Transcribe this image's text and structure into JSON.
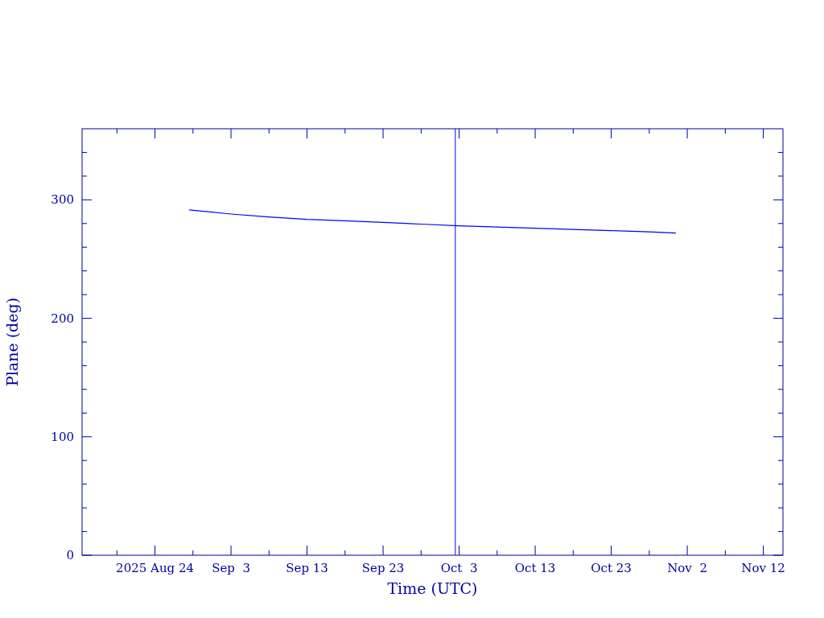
{
  "chart_data": {
    "type": "line",
    "xlabel": "Time (UTC)",
    "ylabel": "Plane (deg)",
    "xlim": [
      "2025-08-14T10:00",
      "2025-11-14T14:00"
    ],
    "xticks": [
      {
        "value": "2025-08-19",
        "label": null
      },
      {
        "value": "2025-08-24",
        "label": "2025 Aug 24"
      },
      {
        "value": "2025-08-29",
        "label": null
      },
      {
        "value": "2025-09-03",
        "label": "Sep  3"
      },
      {
        "value": "2025-09-08",
        "label": null
      },
      {
        "value": "2025-09-13",
        "label": "Sep 13"
      },
      {
        "value": "2025-09-18",
        "label": null
      },
      {
        "value": "2025-09-23",
        "label": "Sep 23"
      },
      {
        "value": "2025-09-28",
        "label": null
      },
      {
        "value": "2025-10-03",
        "label": "Oct  3"
      },
      {
        "value": "2025-10-08",
        "label": null
      },
      {
        "value": "2025-10-13",
        "label": "Oct 13"
      },
      {
        "value": "2025-10-18",
        "label": null
      },
      {
        "value": "2025-10-23",
        "label": "Oct 23"
      },
      {
        "value": "2025-10-28",
        "label": null
      },
      {
        "value": "2025-11-02",
        "label": "Nov  2"
      },
      {
        "value": "2025-11-07",
        "label": null
      },
      {
        "value": "2025-11-12",
        "label": "Nov 12"
      }
    ],
    "ylim": [
      0,
      360
    ],
    "yticks": [
      0,
      {
        "value": 20,
        "label": null
      },
      {
        "value": 40,
        "label": null
      },
      {
        "value": 60,
        "label": null
      },
      {
        "value": 80,
        "label": null
      },
      100,
      {
        "value": 120,
        "label": null
      },
      {
        "value": 140,
        "label": null
      },
      {
        "value": 160,
        "label": null
      },
      {
        "value": 180,
        "label": null
      },
      200,
      {
        "value": 220,
        "label": null
      },
      {
        "value": 240,
        "label": null
      },
      {
        "value": 260,
        "label": null
      },
      {
        "value": 280,
        "label": null
      },
      300,
      {
        "value": 320,
        "label": null
      },
      {
        "value": 340,
        "label": null
      }
    ],
    "x": [
      "2025-08-28T12:00",
      "2025-09-03",
      "2025-09-08",
      "2025-09-13",
      "2025-09-18",
      "2025-09-23",
      "2025-09-28",
      "2025-10-03",
      "2025-10-08",
      "2025-10-13",
      "2025-10-18",
      "2025-10-23",
      "2025-10-28",
      "2025-10-31T12:00"
    ],
    "series": [
      {
        "color": "#0000ff",
        "values": [
          291.5,
          288,
          285.5,
          283.5,
          282.3,
          281,
          279.5,
          278,
          277,
          276,
          275,
          274,
          273,
          272
        ]
      }
    ],
    "ref_lines": [
      {
        "axis": "x",
        "value": "2025-10-02T12:00",
        "color": "#0000ff"
      }
    ],
    "grid": false,
    "marker": "none",
    "line_style": "solid"
  }
}
